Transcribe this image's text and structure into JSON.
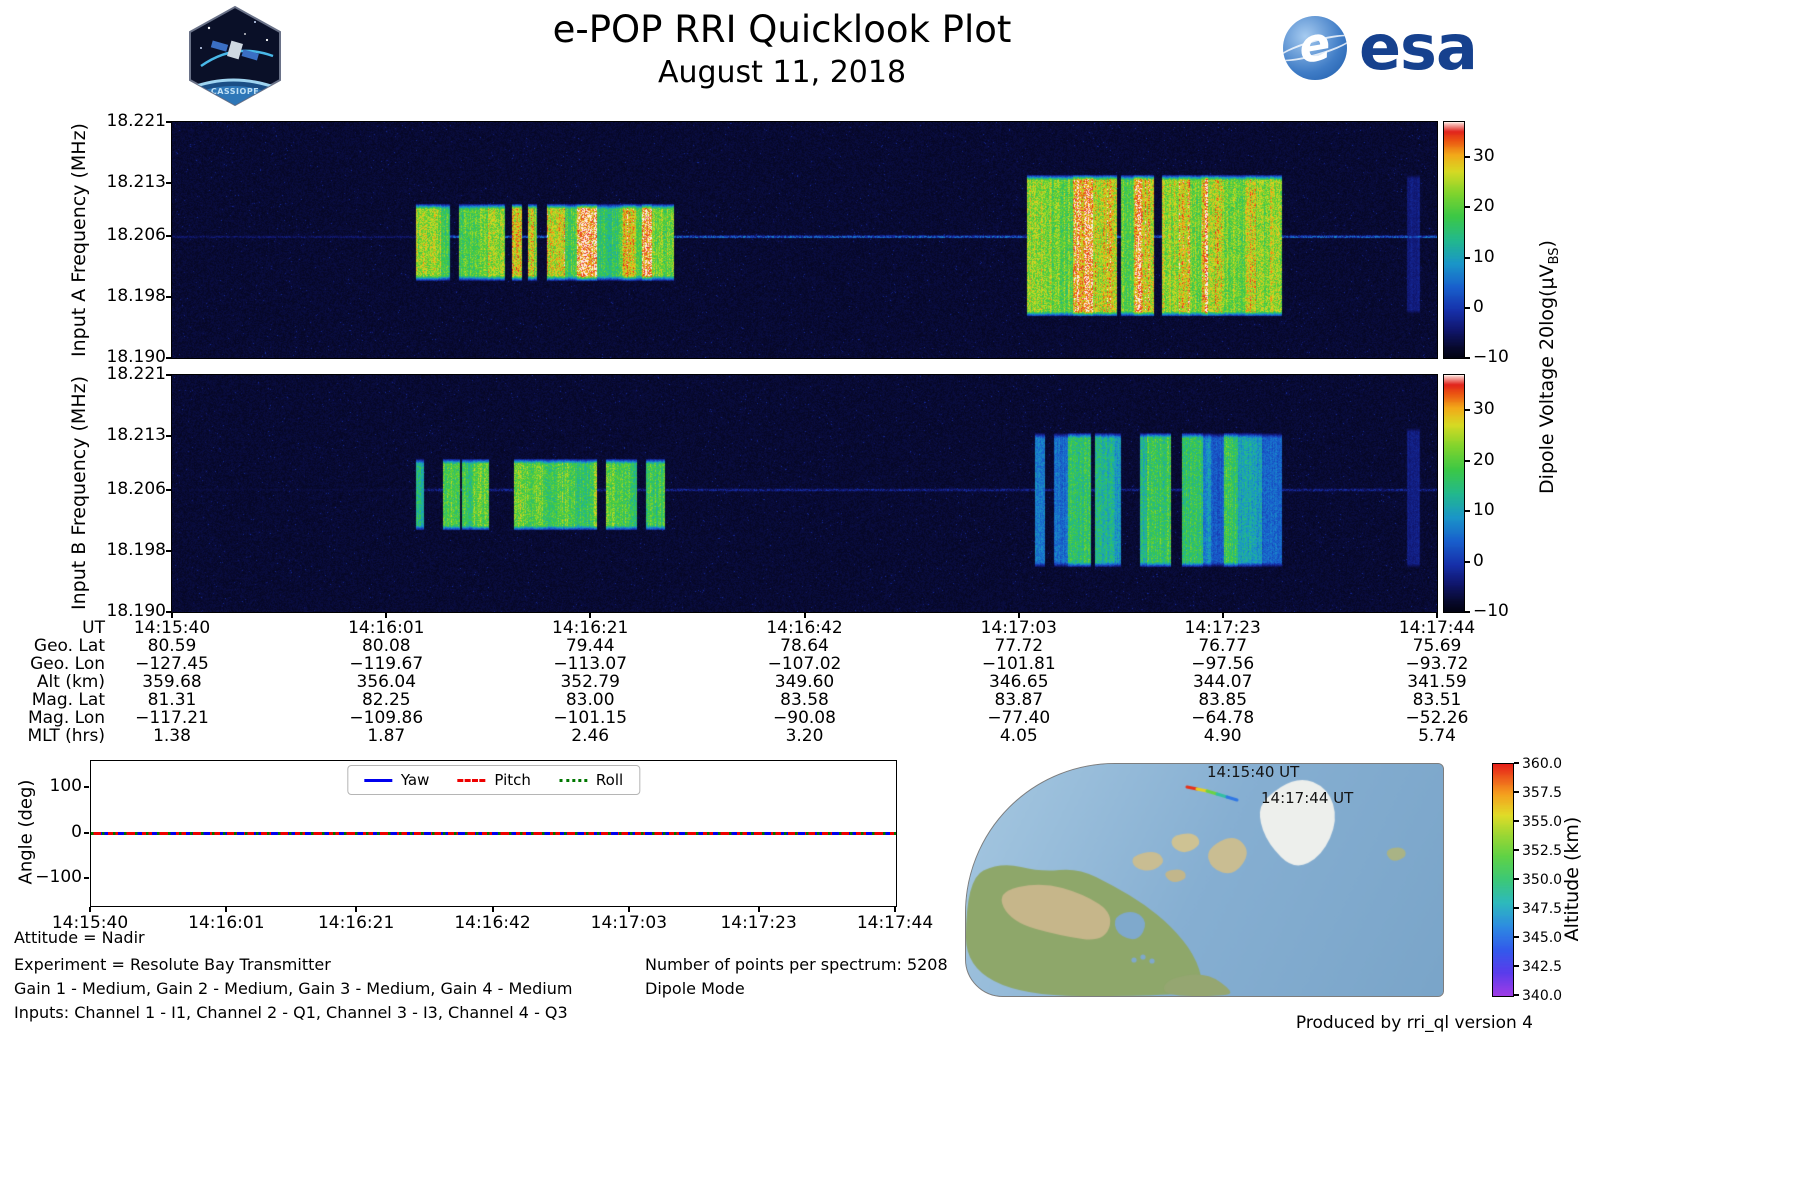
{
  "header": {
    "title": "e-POP RRI Quicklook Plot",
    "date": "August 11, 2018",
    "esa_wordmark": "esa",
    "esa_globe_letter": "e",
    "mission_patch_text": "CASSIOPE"
  },
  "spectrograms": {
    "ylim": [
      18.19,
      18.221
    ],
    "yticks": [
      "18.221",
      "18.213",
      "18.206",
      "18.198",
      "18.190"
    ],
    "ytick_values": [
      18.221,
      18.213,
      18.206,
      18.198,
      18.19
    ],
    "colorbar": {
      "label": "Dipole Voltage 20log(μV_BS)",
      "label_pre": "Dipole Voltage 20log(μV",
      "label_sub": "BS",
      "label_post": ")",
      "range": [
        -10,
        37
      ],
      "ticks": [
        "30",
        "20",
        "10",
        "0",
        "−10"
      ],
      "tick_values": [
        30,
        20,
        10,
        0,
        -10
      ]
    },
    "panels": [
      {
        "ylabel": "Input A Frequency (MHz)",
        "seed": 11,
        "carrier_mhz": 18.206,
        "carrier_strength": 0.26,
        "bursts": [
          {
            "t0": 0.193,
            "t1": 0.397,
            "f_low": 18.2005,
            "f_high": 18.21,
            "gap_prob": 0.22,
            "hot_prob": 0.1,
            "level_lo": 0.55,
            "level_hi": 0.85
          },
          {
            "t0": 0.676,
            "t1": 0.878,
            "f_low": 18.1958,
            "f_high": 18.2138,
            "gap_prob": 0.1,
            "hot_prob": 0.08,
            "level_lo": 0.58,
            "level_hi": 0.85
          },
          {
            "t0": 0.977,
            "t1": 0.987,
            "f_low": 18.196,
            "f_high": 18.214,
            "gap_prob": 0.0,
            "hot_prob": 0.0,
            "level_lo": 0.1,
            "level_hi": 0.17
          }
        ]
      },
      {
        "ylabel": "Input B Frequency (MHz)",
        "seed": 22,
        "carrier_mhz": 18.206,
        "carrier_strength": 0.14,
        "bursts": [
          {
            "t0": 0.193,
            "t1": 0.39,
            "f_low": 18.201,
            "f_high": 18.2098,
            "gap_prob": 0.26,
            "hot_prob": 0.0,
            "level_lo": 0.46,
            "level_hi": 0.7
          },
          {
            "t0": 0.683,
            "t1": 0.878,
            "f_low": 18.1962,
            "f_high": 18.2132,
            "gap_prob": 0.3,
            "hot_prob": 0.0,
            "level_lo": 0.28,
            "level_hi": 0.62
          },
          {
            "t0": 0.977,
            "t1": 0.987,
            "f_low": 18.196,
            "f_high": 18.214,
            "gap_prob": 0.0,
            "hot_prob": 0.0,
            "level_lo": 0.1,
            "level_hi": 0.16
          }
        ]
      }
    ]
  },
  "column_fractions": [
    0,
    0.1694,
    0.3306,
    0.5,
    0.6694,
    0.8306,
    1
  ],
  "axis_rows": [
    {
      "label": "UT",
      "values": [
        "14:15:40",
        "14:16:01",
        "14:16:21",
        "14:16:42",
        "14:17:03",
        "14:17:23",
        "14:17:44"
      ]
    },
    {
      "label": "Geo. Lat",
      "values": [
        "80.59",
        "80.08",
        "79.44",
        "78.64",
        "77.72",
        "76.77",
        "75.69"
      ]
    },
    {
      "label": "Geo. Lon",
      "values": [
        "−127.45",
        "−119.67",
        "−113.07",
        "−107.02",
        "−101.81",
        "−97.56",
        "−93.72"
      ]
    },
    {
      "label": "Alt (km)",
      "values": [
        "359.68",
        "356.04",
        "352.79",
        "349.60",
        "346.65",
        "344.07",
        "341.59"
      ]
    },
    {
      "label": "Mag. Lat",
      "values": [
        "81.31",
        "82.25",
        "83.00",
        "83.58",
        "83.87",
        "83.85",
        "83.51"
      ]
    },
    {
      "label": "Mag. Lon",
      "values": [
        "−117.21",
        "−109.86",
        "−101.15",
        "−90.08",
        "−77.40",
        "−64.78",
        "−52.26"
      ]
    },
    {
      "label": "MLT (hrs)",
      "values": [
        "1.38",
        "1.87",
        "2.46",
        "3.20",
        "4.05",
        "4.90",
        "5.74"
      ]
    }
  ],
  "angle_plot": {
    "ylabel": "Angle (deg)",
    "ylim": [
      -160,
      160
    ],
    "yticks": [
      "100",
      "0",
      "−100"
    ],
    "ytick_values": [
      100,
      0,
      -100
    ],
    "xticks": [
      "14:15:40",
      "14:16:01",
      "14:16:21",
      "14:16:42",
      "14:17:03",
      "14:17:23",
      "14:17:44"
    ],
    "series": [
      {
        "name": "Yaw",
        "color": "#0000ee",
        "style": "solid",
        "value": 0
      },
      {
        "name": "Pitch",
        "color": "#ee0000",
        "style": "dashed",
        "value": 0
      },
      {
        "name": "Roll",
        "color": "#007700",
        "style": "dotted",
        "value": 0
      }
    ]
  },
  "map": {
    "track_start_label": "14:15:40 UT",
    "track_end_label": "14:17:44 UT",
    "track": {
      "start_alt_km": 359.68,
      "end_alt_km": 341.59
    },
    "colorbar": {
      "label": "Altitude (km)",
      "range": [
        340,
        360
      ],
      "ticks": [
        "360.0",
        "357.5",
        "355.0",
        "352.5",
        "350.0",
        "347.5",
        "345.0",
        "342.5",
        "340.0"
      ],
      "tick_values": [
        360.0,
        357.5,
        355.0,
        352.5,
        350.0,
        347.5,
        345.0,
        342.5,
        340.0
      ]
    }
  },
  "footer": {
    "attitude": "Attitude = Nadir",
    "experiment": "Experiment = Resolute Bay Transmitter",
    "gains": "Gain 1 - Medium, Gain 2 - Medium, Gain 3 - Medium, Gain 4 - Medium",
    "inputs": "Inputs: Channel 1 - I1, Channel 2 - Q1, Channel 3 - I3, Channel 4 - Q3",
    "points_per_spectrum": "Number of points per spectrum: 5208",
    "mode": "Dipole Mode",
    "produced_by": "Produced by rri_ql version 4"
  },
  "chart_data": [
    {
      "type": "heatmap",
      "title": "Input A spectrogram",
      "ylabel": "Input A Frequency (MHz)",
      "xlabel": "UT",
      "x_ticks": [
        "14:15:40",
        "14:16:01",
        "14:16:21",
        "14:16:42",
        "14:17:03",
        "14:17:23",
        "14:17:44"
      ],
      "ylim": [
        18.19,
        18.221
      ],
      "yticks": [
        18.221,
        18.213,
        18.206,
        18.198,
        18.19
      ],
      "colorbar_label": "Dipole Voltage 20log(μV_BS)",
      "colorbar_ticks": [
        30,
        20,
        10,
        0,
        -10
      ],
      "colorbar_range": [
        -10,
        37
      ],
      "background": "dark navy noise floor near -10",
      "features": [
        {
          "kind": "carrier_line",
          "freq_mhz": 18.206,
          "extent": "faint blue line across full interval"
        },
        {
          "kind": "burst",
          "ut_start": "~14:16:04",
          "ut_end": "~14:16:29",
          "freq_low_mhz": 18.2005,
          "freq_high_mhz": 18.21,
          "appearance": "strong green-yellow columns with red stripes, split by dark gaps"
        },
        {
          "kind": "burst",
          "ut_start": "~14:17:04",
          "ut_end": "~14:17:29",
          "freq_low_mhz": 18.1958,
          "freq_high_mhz": 18.2138,
          "appearance": "dense yellow-green block with red flecks"
        }
      ]
    },
    {
      "type": "heatmap",
      "title": "Input B spectrogram",
      "ylabel": "Input B Frequency (MHz)",
      "xlabel": "UT",
      "x_ticks": [
        "14:15:40",
        "14:16:01",
        "14:16:21",
        "14:16:42",
        "14:17:03",
        "14:17:23",
        "14:17:44"
      ],
      "ylim": [
        18.19,
        18.221
      ],
      "yticks": [
        18.221,
        18.213,
        18.206,
        18.198,
        18.19
      ],
      "colorbar_label": "Dipole Voltage 20log(μV_BS)",
      "colorbar_ticks": [
        30,
        20,
        10,
        0,
        -10
      ],
      "colorbar_range": [
        -10,
        37
      ],
      "features": [
        {
          "kind": "carrier_line",
          "freq_mhz": 18.206,
          "extent": "very faint"
        },
        {
          "kind": "burst",
          "ut_start": "~14:16:04",
          "ut_end": "~14:16:28",
          "freq_low_mhz": 18.201,
          "freq_high_mhz": 18.2098,
          "appearance": "medium green columns with gaps"
        },
        {
          "kind": "burst",
          "ut_start": "~14:17:05",
          "ut_end": "~14:17:29",
          "freq_low_mhz": 18.1962,
          "freq_high_mhz": 18.2132,
          "appearance": "blue-cyan block with scattered green stripes"
        }
      ]
    },
    {
      "type": "line",
      "title": "Spacecraft attitude",
      "ylabel": "Angle (deg)",
      "ylim": [
        -160,
        160
      ],
      "yticks": [
        100,
        0,
        -100
      ],
      "x_ticks": [
        "14:15:40",
        "14:16:01",
        "14:16:21",
        "14:16:42",
        "14:17:03",
        "14:17:23",
        "14:17:44"
      ],
      "legend_position": "top center",
      "series": [
        {
          "name": "Yaw",
          "style": "solid",
          "color": "blue",
          "values": [
            0,
            0
          ]
        },
        {
          "name": "Pitch",
          "style": "dashed",
          "color": "red",
          "values": [
            0,
            0
          ]
        },
        {
          "name": "Roll",
          "style": "dotted",
          "color": "green",
          "values": [
            0,
            0
          ]
        }
      ]
    },
    {
      "type": "map_track",
      "title": "Ground track over Arctic Canada and Greenland",
      "annotations": [
        "14:15:40 UT",
        "14:17:44 UT"
      ],
      "colorbar_label": "Altitude (km)",
      "colorbar_ticks": [
        360.0,
        357.5,
        355.0,
        352.5,
        350.0,
        347.5,
        345.0,
        342.5,
        340.0
      ],
      "colorbar_range": [
        340.0,
        360.0
      ],
      "track": {
        "start_ut": "14:15:40",
        "end_ut": "14:17:44",
        "start_alt_km": 359.68,
        "end_alt_km": 341.59
      }
    }
  ]
}
